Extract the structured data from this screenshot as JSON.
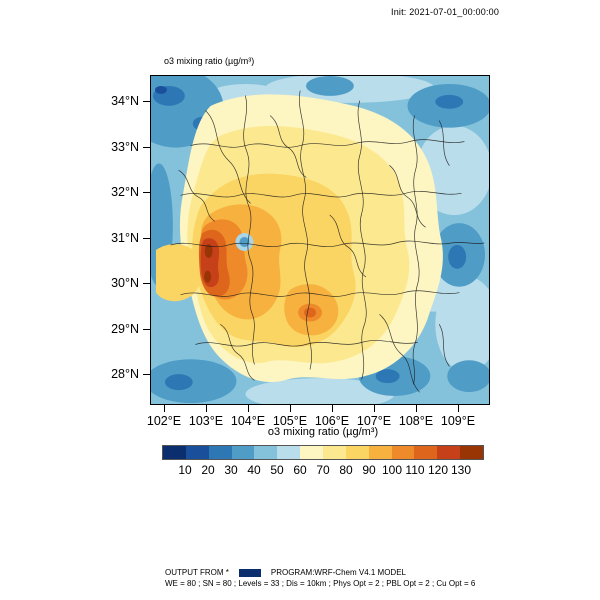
{
  "header": {
    "init_text": "Init: 2021-07-01_00:00:00"
  },
  "plot": {
    "title": "o3 mixing ratio  (µg/m³)",
    "colorbar_title": "o3 mixing ratio  (µg/m³)"
  },
  "map": {
    "lat_ticks": [
      "34°N",
      "33°N",
      "32°N",
      "31°N",
      "30°N",
      "29°N",
      "28°N"
    ],
    "lon_ticks": [
      "102°E",
      "103°E",
      "104°E",
      "105°E",
      "106°E",
      "107°E",
      "108°E",
      "109°E"
    ]
  },
  "colorbar": {
    "tick_labels": [
      "10",
      "20",
      "30",
      "40",
      "50",
      "60",
      "70",
      "80",
      "90",
      "100",
      "110",
      "120",
      "130"
    ],
    "colors": [
      "#0a2e6e",
      "#1a4f9c",
      "#2d77b4",
      "#4f9dc7",
      "#84c2dc",
      "#b9ddea",
      "#fdf5c2",
      "#fce98f",
      "#fbd563",
      "#f7b13f",
      "#ee8a2a",
      "#dd661c",
      "#c6401a",
      "#993404"
    ]
  },
  "footer": {
    "line1_left": "OUTPUT FROM *",
    "line1_right": "PROGRAM:WRF-Chem V4.1 MODEL",
    "line2": "WE = 80 ; SN = 80 ; Levels = 33 ; Dis = 10km ; Phys Opt = 2 ; PBL Opt = 2 ; Cu Opt = 6",
    "swatch_color": "#0a2e6e"
  },
  "chart_data": {
    "type": "heatmap",
    "title": "o3 mixing ratio (µg/m³)",
    "x_tick_labels": [
      "102°E",
      "103°E",
      "104°E",
      "105°E",
      "106°E",
      "107°E",
      "108°E",
      "109°E"
    ],
    "y_tick_labels": [
      "34°N",
      "33°N",
      "32°N",
      "31°N",
      "30°N",
      "29°N",
      "28°N"
    ],
    "levels": [
      10,
      20,
      30,
      40,
      50,
      60,
      70,
      80,
      90,
      100,
      110,
      120,
      130
    ],
    "palette": [
      "#0a2e6e",
      "#1a4f9c",
      "#2d77b4",
      "#4f9dc7",
      "#84c2dc",
      "#b9ddea",
      "#fdf5c2",
      "#fce98f",
      "#fbd563",
      "#f7b13f",
      "#ee8a2a",
      "#dd661c",
      "#c6401a",
      "#993404"
    ],
    "colorbar_label": "o3 mixing ratio (µg/m³)",
    "units": "µg/m³"
  }
}
